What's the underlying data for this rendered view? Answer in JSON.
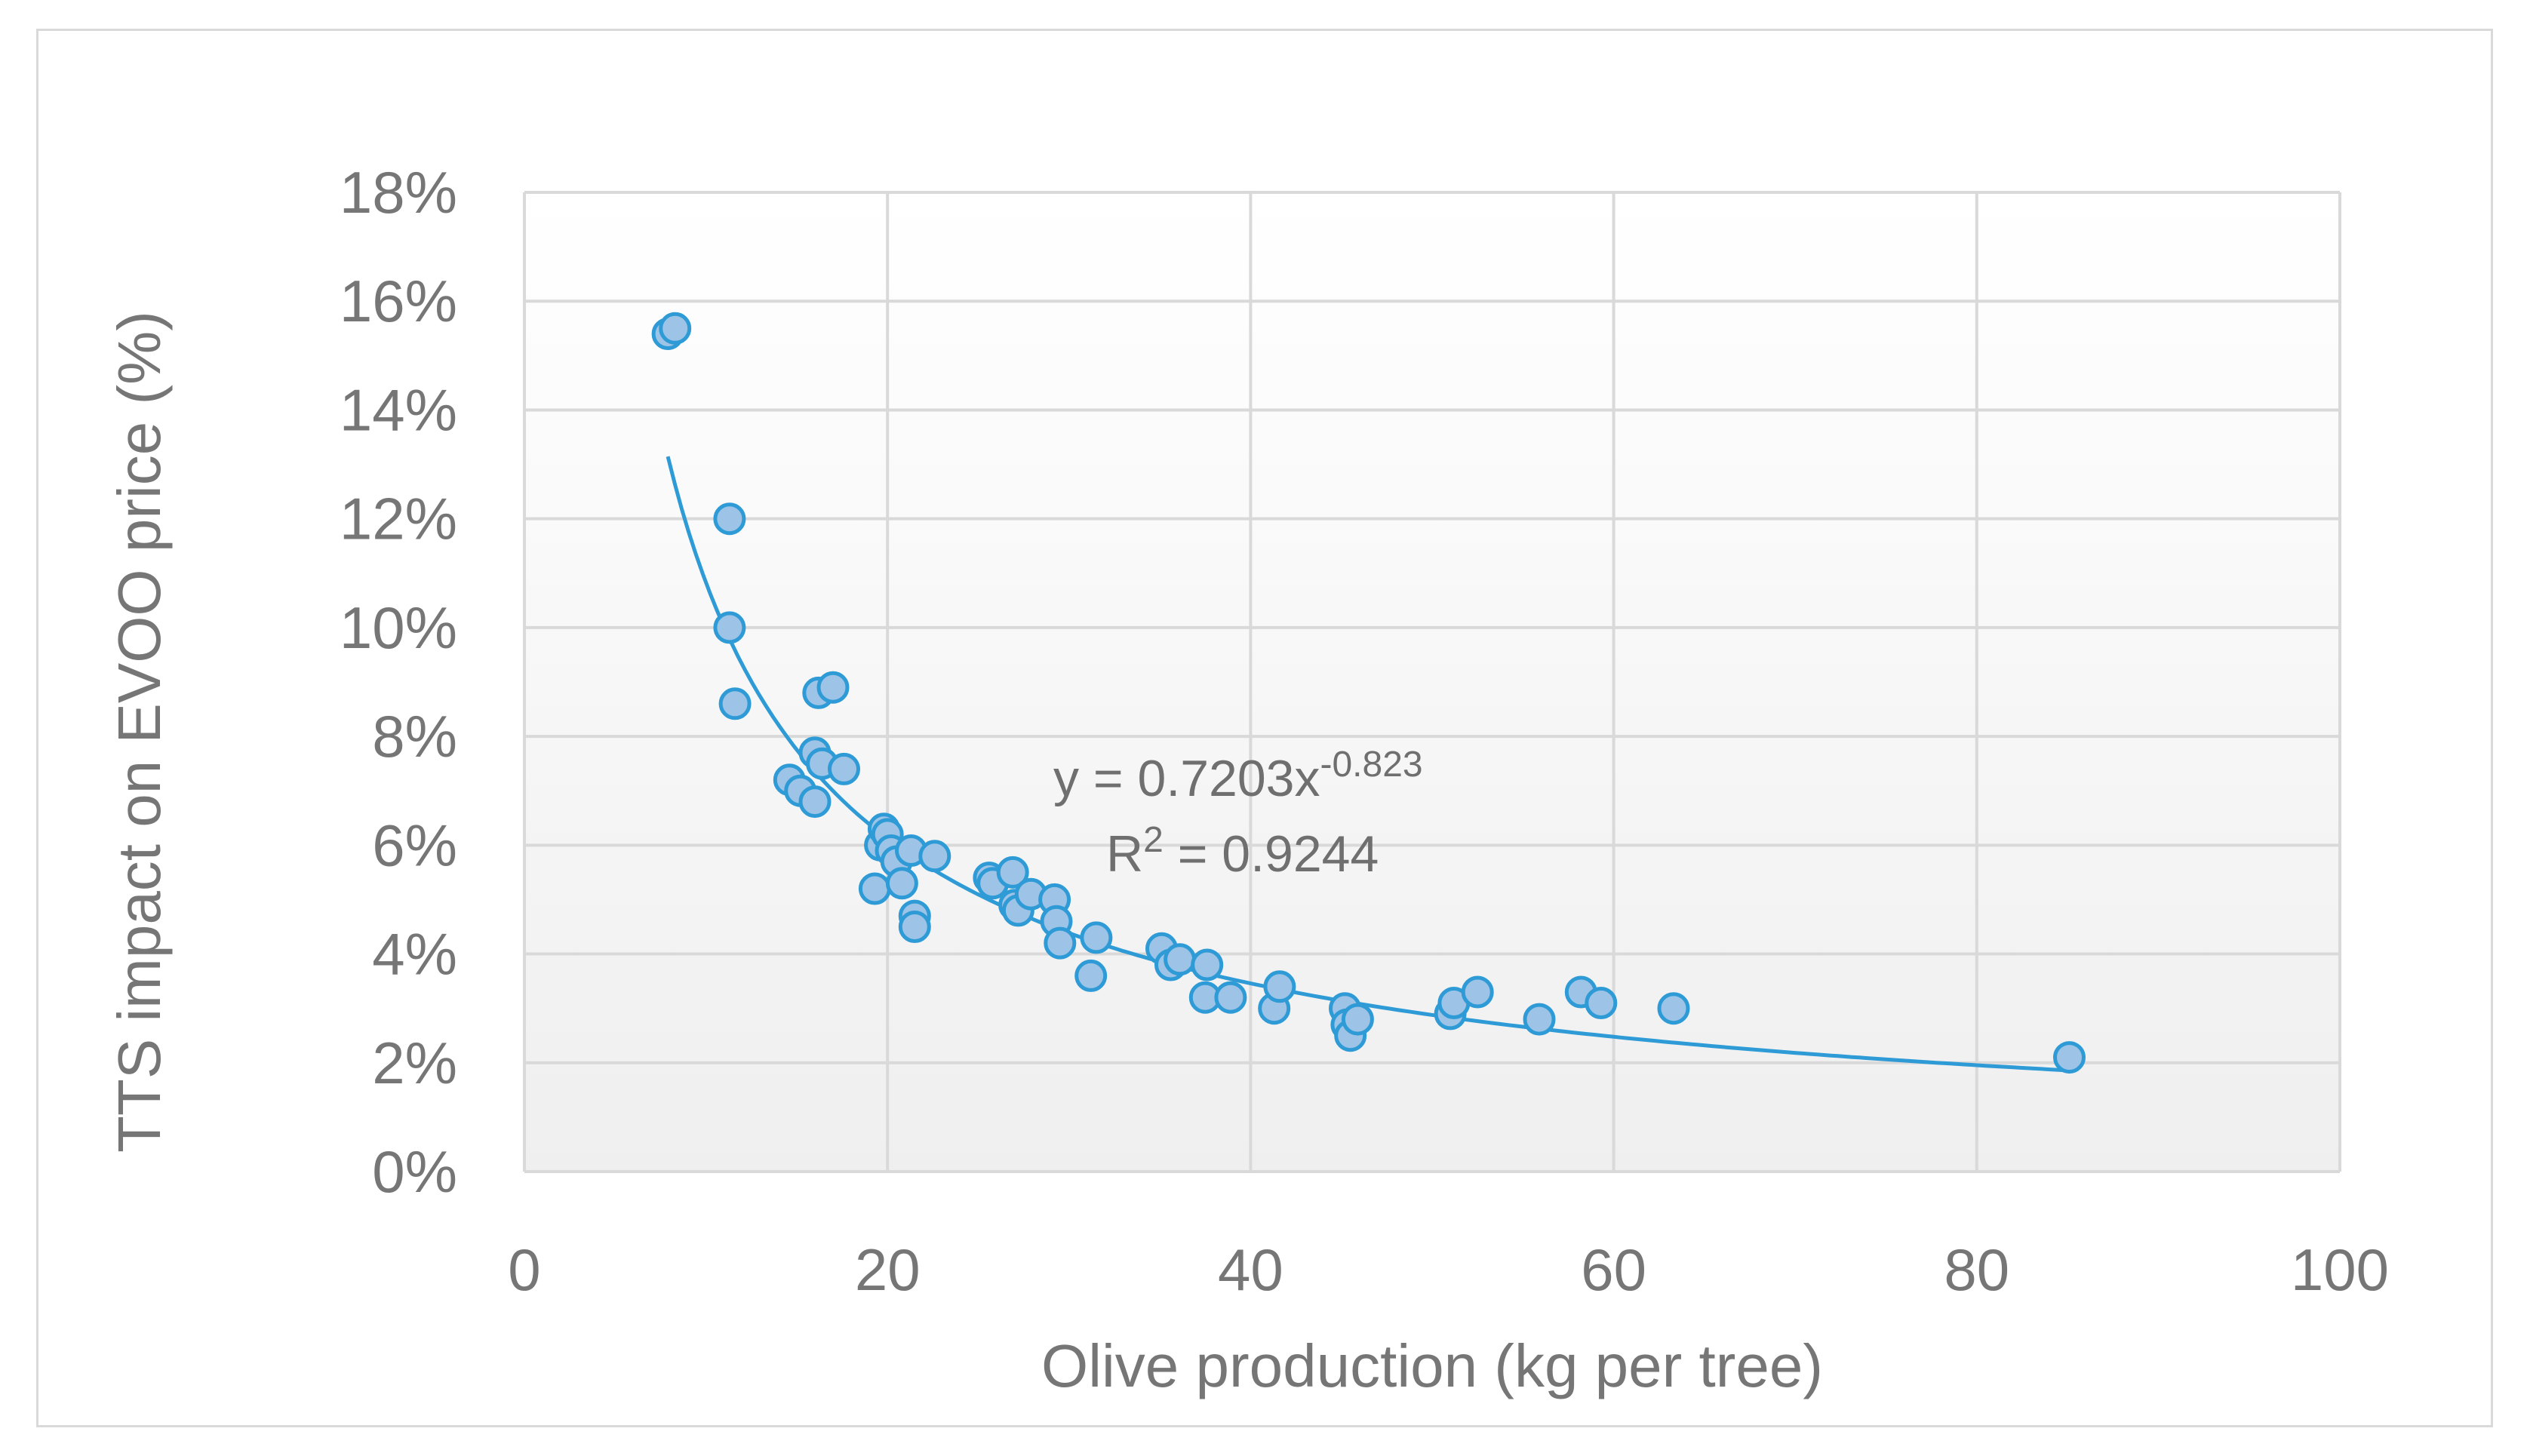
{
  "chart_data": {
    "type": "scatter",
    "title": "",
    "xlabel": "Olive production (kg per tree)",
    "ylabel": "TTS impact on EVOO price (%)",
    "xlim": [
      0,
      100
    ],
    "ylim": [
      0,
      0.18
    ],
    "xticks": [
      0,
      20,
      40,
      60,
      80,
      100
    ],
    "yticks": [
      0,
      0.02,
      0.04,
      0.06,
      0.08,
      0.1,
      0.12,
      0.14,
      0.16,
      0.18
    ],
    "xtick_labels": [
      "0",
      "20",
      "40",
      "60",
      "80",
      "100"
    ],
    "ytick_labels": [
      "0%",
      "2%",
      "4%",
      "6%",
      "8%",
      "10%",
      "12%",
      "14%",
      "16%",
      "18%"
    ],
    "grid": true,
    "legend": "none",
    "series": [
      {
        "name": "TTS impact",
        "color": "#9dc3e6",
        "edge_color": "#2e9bd6",
        "points": [
          [
            7.9,
            0.154
          ],
          [
            8.3,
            0.155
          ],
          [
            11.3,
            0.12
          ],
          [
            11.3,
            0.1
          ],
          [
            11.6,
            0.086
          ],
          [
            14.6,
            0.072
          ],
          [
            15.2,
            0.07
          ],
          [
            16.0,
            0.077
          ],
          [
            16.0,
            0.068
          ],
          [
            16.2,
            0.088
          ],
          [
            16.4,
            0.075
          ],
          [
            17.0,
            0.089
          ],
          [
            17.6,
            0.074
          ],
          [
            19.3,
            0.052
          ],
          [
            19.6,
            0.06
          ],
          [
            19.8,
            0.063
          ],
          [
            20.0,
            0.062
          ],
          [
            20.2,
            0.059
          ],
          [
            20.5,
            0.057
          ],
          [
            20.8,
            0.053
          ],
          [
            21.3,
            0.059
          ],
          [
            21.5,
            0.047
          ],
          [
            21.5,
            0.045
          ],
          [
            22.6,
            0.058
          ],
          [
            25.6,
            0.054
          ],
          [
            25.8,
            0.053
          ],
          [
            26.9,
            0.055
          ],
          [
            27.0,
            0.049
          ],
          [
            27.2,
            0.048
          ],
          [
            27.9,
            0.051
          ],
          [
            29.2,
            0.05
          ],
          [
            29.3,
            0.046
          ],
          [
            29.5,
            0.042
          ],
          [
            31.2,
            0.036
          ],
          [
            31.5,
            0.043
          ],
          [
            35.1,
            0.041
          ],
          [
            35.6,
            0.038
          ],
          [
            36.1,
            0.039
          ],
          [
            37.5,
            0.032
          ],
          [
            37.6,
            0.038
          ],
          [
            38.9,
            0.032
          ],
          [
            41.3,
            0.03
          ],
          [
            41.6,
            0.034
          ],
          [
            45.2,
            0.03
          ],
          [
            45.3,
            0.027
          ],
          [
            45.5,
            0.025
          ],
          [
            45.9,
            0.028
          ],
          [
            51.0,
            0.029
          ],
          [
            51.2,
            0.031
          ],
          [
            52.5,
            0.033
          ],
          [
            55.9,
            0.028
          ],
          [
            58.2,
            0.033
          ],
          [
            59.3,
            0.031
          ],
          [
            63.3,
            0.03
          ],
          [
            85.1,
            0.021
          ]
        ]
      }
    ],
    "trendline": {
      "type": "power",
      "a": 0.7203,
      "b": -0.823,
      "x_range": [
        7.9,
        85.1
      ],
      "color": "#2e9bd6",
      "equation_prefix": "y = 0.7203x",
      "equation_exponent": "-0.823",
      "r2_prefix": "R",
      "r2_sup": "2",
      "r2_suffix": " = 0.9244"
    }
  }
}
